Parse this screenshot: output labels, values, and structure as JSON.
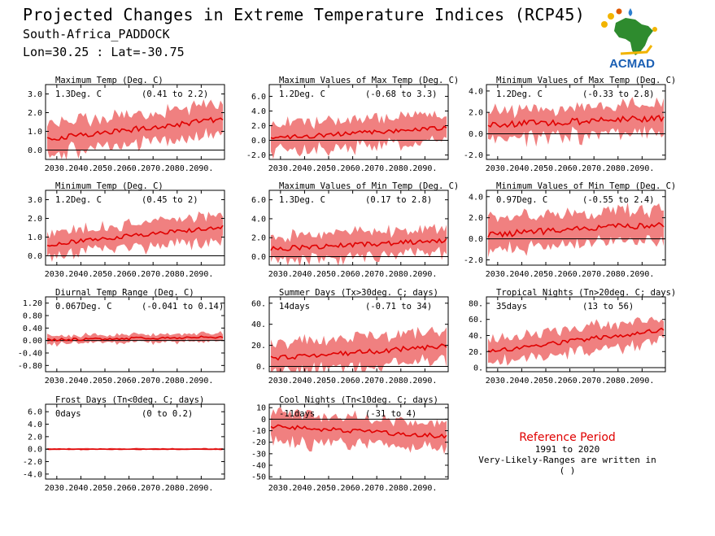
{
  "header": {
    "title": "Projected Changes in Extreme Temperature Indices (RCP45)",
    "subtitle": "South-Africa_PADDOCK",
    "coords": "Lon=30.25 : Lat=-30.75",
    "logo_text": "ACMAD"
  },
  "reference": {
    "title": "Reference Period",
    "period": "1991 to 2020",
    "note": "Very-Likely-Ranges are written in ( )"
  },
  "colors": {
    "line": "#e00000",
    "band": "#f08080",
    "zero": "#000000"
  },
  "chart_data": [
    {
      "type": "area",
      "title": "Maximum Temp (Deg. C)",
      "annotation": "1.3Deg. C",
      "range": "(0.41 to 2.2)",
      "ylim": [
        -0.5,
        3.5
      ],
      "yticks": [
        "3.0",
        "2.0",
        "1.0",
        "0.0"
      ],
      "x_start": 2026,
      "x_end": 2099,
      "xticks": [
        "2030.",
        "2040.",
        "2050.",
        "2060.",
        "2070.",
        "2080.",
        "2090."
      ],
      "mean_start": 0.6,
      "mean_end": 1.65,
      "band_width": 0.8,
      "noise": 0.15
    },
    {
      "type": "area",
      "title": "Maximum Values of Max Temp (Deg. C)",
      "annotation": "1.2Deg. C",
      "range": "(-0.68 to 3.3)",
      "ylim": [
        -2.6,
        7.6
      ],
      "yticks": [
        "6.0",
        "4.0",
        "2.0",
        "0.0",
        "-2.0"
      ],
      "x_start": 2026,
      "x_end": 2099,
      "xticks": [
        "2030.",
        "2040.",
        "2050.",
        "2060.",
        "2070.",
        "2080.",
        "2090."
      ],
      "mean_start": 0.3,
      "mean_end": 1.7,
      "band_width": 1.9,
      "noise": 0.3
    },
    {
      "type": "area",
      "title": "Minimum Values of Max Temp (Deg. C)",
      "annotation": "1.2Deg. C",
      "range": "(-0.33 to 2.8)",
      "ylim": [
        -2.4,
        4.6
      ],
      "yticks": [
        "4.0",
        "2.0",
        "0.0",
        "-2.0"
      ],
      "x_start": 2026,
      "x_end": 2099,
      "xticks": [
        "2030.",
        "2040.",
        "2050.",
        "2060.",
        "2070.",
        "2080.",
        "2090."
      ],
      "mean_start": 0.8,
      "mean_end": 1.5,
      "band_width": 1.3,
      "noise": 0.3
    },
    {
      "type": "area",
      "title": "Minimum Temp (Deg. C)",
      "annotation": "1.2Deg. C",
      "range": "(0.45 to 2)",
      "ylim": [
        -0.5,
        3.5
      ],
      "yticks": [
        "3.0",
        "2.0",
        "1.0",
        "0.0"
      ],
      "x_start": 2026,
      "x_end": 2099,
      "xticks": [
        "2030.",
        "2040.",
        "2050.",
        "2060.",
        "2070.",
        "2080.",
        "2090."
      ],
      "mean_start": 0.6,
      "mean_end": 1.55,
      "band_width": 0.65,
      "noise": 0.12
    },
    {
      "type": "area",
      "title": "Maximum Values of Min Temp (Deg. C)",
      "annotation": "1.3Deg. C",
      "range": "(0.17 to 2.8)",
      "ylim": [
        -0.9,
        7.0
      ],
      "yticks": [
        "6.0",
        "4.0",
        "2.0",
        "0.0"
      ],
      "x_start": 2026,
      "x_end": 2099,
      "xticks": [
        "2030.",
        "2040.",
        "2050.",
        "2060.",
        "2070.",
        "2080.",
        "2090."
      ],
      "mean_start": 0.8,
      "mean_end": 1.7,
      "band_width": 1.3,
      "noise": 0.25
    },
    {
      "type": "area",
      "title": "Minimum Values of Min Temp (Deg. C)",
      "annotation": "0.97Deg. C",
      "range": "(-0.55 to 2.4)",
      "ylim": [
        -2.5,
        4.6
      ],
      "yticks": [
        "4.0",
        "2.0",
        "0.0",
        "-2.0"
      ],
      "x_start": 2026,
      "x_end": 2099,
      "xticks": [
        "2030.",
        "2040.",
        "2050.",
        "2060.",
        "2070.",
        "2080.",
        "2090."
      ],
      "mean_start": 0.4,
      "mean_end": 1.4,
      "band_width": 1.5,
      "noise": 0.3
    },
    {
      "type": "area",
      "title": "Diurnal Temp Range (Deg. C)",
      "annotation": "0.067Deg. C",
      "range": "(-0.041 to 0.14)",
      "ylim": [
        -1.0,
        1.4
      ],
      "yticks": [
        "1.20",
        "0.80",
        "0.40",
        "0.00",
        "-0.40",
        "-0.80"
      ],
      "x_start": 2026,
      "x_end": 2099,
      "xticks": [
        "2030.",
        "2040.",
        "2050.",
        "2060.",
        "2070.",
        "2080.",
        "2090."
      ],
      "mean_start": 0.02,
      "mean_end": 0.12,
      "band_width": 0.13,
      "noise": 0.04
    },
    {
      "type": "area",
      "title": "Summer Days (Tx>30deg. C; days)",
      "annotation": "14days",
      "range": "(-0.71 to 34)",
      "ylim": [
        -5,
        66
      ],
      "yticks": [
        "60.",
        "40.",
        "20.",
        "0."
      ],
      "x_start": 2026,
      "x_end": 2099,
      "xticks": [
        "2030.",
        "2040.",
        "2050.",
        "2060.",
        "2070.",
        "2080.",
        "2090."
      ],
      "mean_start": 8,
      "mean_end": 19,
      "band_width": 14,
      "noise": 2.5
    },
    {
      "type": "area",
      "title": "Tropical Nights (Tn>20deg. C; days)",
      "annotation": "35days",
      "range": "(13 to 56)",
      "ylim": [
        -5,
        88
      ],
      "yticks": [
        "80.",
        "60.",
        "40.",
        "20.",
        "0."
      ],
      "x_start": 2026,
      "x_end": 2099,
      "xticks": [
        "2030.",
        "2040.",
        "2050.",
        "2060.",
        "2070.",
        "2080.",
        "2090."
      ],
      "mean_start": 20,
      "mean_end": 47,
      "band_width": 15,
      "noise": 3
    },
    {
      "type": "area",
      "title": "Frost Days (Tn<0deg. C; days)",
      "annotation": "0days",
      "range": "(0 to 0.2)",
      "ylim": [
        -4.8,
        7.2
      ],
      "yticks": [
        "6.0",
        "4.0",
        "2.0",
        "0.0",
        "-2.0",
        "-4.0"
      ],
      "x_start": 2026,
      "x_end": 2099,
      "xticks": [
        "2030.",
        "2040.",
        "2050.",
        "2060.",
        "2070.",
        "2080.",
        "2090."
      ],
      "mean_start": 0,
      "mean_end": 0,
      "band_width": 0.15,
      "noise": 0.02
    },
    {
      "type": "area",
      "title": "Cool Nights (Tn<10deg. C; days)",
      "annotation": "-11days",
      "range": "(-31 to 4)",
      "ylim": [
        -52,
        13
      ],
      "yticks": [
        "10",
        "0",
        "-10",
        "-20",
        "-30",
        "-40",
        "-50"
      ],
      "x_start": 2026,
      "x_end": 2099,
      "xticks": [
        "2030.",
        "2040.",
        "2050.",
        "2060.",
        "2070.",
        "2080.",
        "2090."
      ],
      "mean_start": -6,
      "mean_end": -15,
      "band_width": 12,
      "noise": 2
    }
  ]
}
